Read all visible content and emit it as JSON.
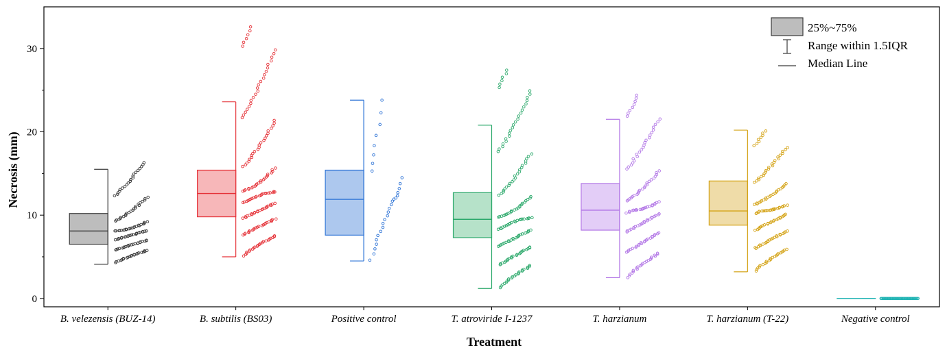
{
  "chart_data": {
    "type": "box",
    "xlabel": "Treatment",
    "ylabel": "Necrosis (mm)",
    "ylim": [
      -1,
      35
    ],
    "yticks": [
      0,
      10,
      20,
      30
    ],
    "grid": false,
    "legend": {
      "position": "top-right",
      "entries": [
        {
          "key": "box",
          "label": "25%~75%"
        },
        {
          "key": "range",
          "label": "Range within 1.5IQR"
        },
        {
          "key": "median",
          "label": "Median Line"
        }
      ]
    },
    "categories": [
      "B. velezensis (BUZ-14)",
      "B. subtilis (BS03)",
      "Positive control",
      "T. atroviride I-1237",
      "T. harzianum",
      "T. harzianum (T-22)",
      "Negative control"
    ],
    "series": [
      {
        "category": "B. velezensis (BUZ-14)",
        "color": "#3a3a3a",
        "fill": "#bdbdbd",
        "q1": 6.5,
        "median": 8.1,
        "q3": 10.2,
        "whisker_low": 4.1,
        "whisker_high": 15.5,
        "points_min": 4.3,
        "points_max": 16.3,
        "n_points": 130
      },
      {
        "category": "B. subtilis (BS03)",
        "color": "#e53238",
        "fill": "#f7b7b9",
        "q1": 9.8,
        "median": 12.6,
        "q3": 15.4,
        "whisker_low": 5.0,
        "whisker_high": 23.6,
        "points_min": 5.1,
        "points_max": 32.6,
        "n_points": 160
      },
      {
        "category": "Positive control",
        "color": "#2f74d6",
        "fill": "#adc8ee",
        "q1": 7.6,
        "median": 11.9,
        "q3": 15.4,
        "whisker_low": 4.5,
        "whisker_high": 23.8,
        "points_min": 4.6,
        "points_max": 23.8,
        "n_points": 30
      },
      {
        "category": "T. atroviride I-1237",
        "color": "#2aa86a",
        "fill": "#b6e2c9",
        "q1": 7.3,
        "median": 9.5,
        "q3": 12.7,
        "whisker_low": 1.2,
        "whisker_high": 20.8,
        "points_min": 1.3,
        "points_max": 27.4,
        "n_points": 160
      },
      {
        "category": "T. harzianum",
        "color": "#b276e6",
        "fill": "#e3cdf7",
        "q1": 8.2,
        "median": 10.6,
        "q3": 13.8,
        "whisker_low": 2.5,
        "whisker_high": 21.5,
        "points_min": 2.5,
        "points_max": 24.4,
        "n_points": 140
      },
      {
        "category": "T. harzianum (T-22)",
        "color": "#d4a316",
        "fill": "#efdca8",
        "q1": 8.8,
        "median": 10.5,
        "q3": 14.1,
        "whisker_low": 3.2,
        "whisker_high": 20.2,
        "points_min": 3.3,
        "points_max": 20.1,
        "n_points": 140
      },
      {
        "category": "Negative control",
        "color": "#1fb3b3",
        "fill": "#a6e3e3",
        "q1": 0,
        "median": 0,
        "q3": 0,
        "whisker_low": 0,
        "whisker_high": 0,
        "points_min": 0,
        "points_max": 0,
        "n_points": 40
      }
    ]
  }
}
